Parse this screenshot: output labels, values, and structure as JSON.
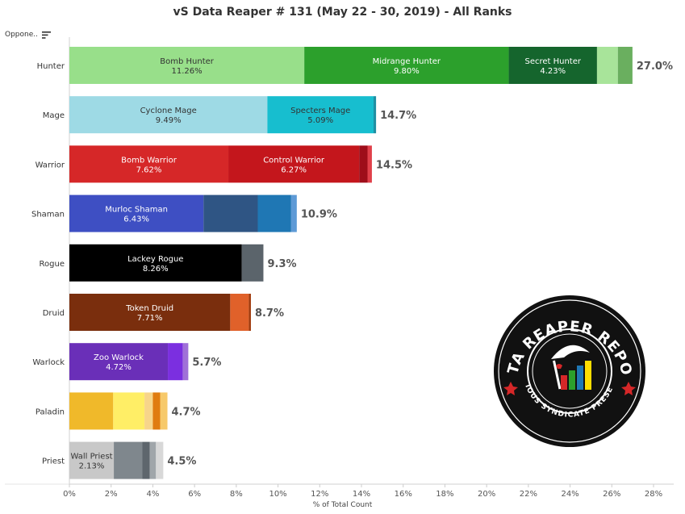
{
  "title": "vS Data Reaper # 131 (May 22 - 30, 2019) - All Ranks",
  "opponent_header": "Oppone..",
  "badge": {
    "top_text": "DATA REAPER REPORT",
    "bottom_text": "VICIOUS SYNDICATE PRESENTS"
  },
  "chart_data": {
    "type": "bar",
    "orientation": "horizontal",
    "stacked": true,
    "title": "vS Data Reaper # 131 (May 22 - 30, 2019) - All Ranks",
    "xlabel": "% of Total Count",
    "ylabel": "Oppone..",
    "xlim": [
      0,
      28
    ],
    "xticks": [
      0,
      2,
      4,
      6,
      8,
      10,
      12,
      14,
      16,
      18,
      20,
      22,
      24,
      26,
      28
    ],
    "xtick_labels": [
      "0%",
      "2%",
      "4%",
      "6%",
      "8%",
      "10%",
      "12%",
      "14%",
      "16%",
      "18%",
      "20%",
      "22%",
      "24%",
      "26%",
      "28%"
    ],
    "categories": [
      "Hunter",
      "Mage",
      "Warrior",
      "Shaman",
      "Rogue",
      "Druid",
      "Warlock",
      "Paladin",
      "Priest"
    ],
    "totals": [
      "27.0%",
      "14.7%",
      "14.5%",
      "10.9%",
      "9.3%",
      "8.7%",
      "5.7%",
      "4.7%",
      "4.5%"
    ],
    "rows": [
      {
        "class": "Hunter",
        "segments": [
          {
            "name": "Bomb Hunter",
            "value": 11.26,
            "label": "11.26%",
            "color": "#98df8a",
            "text_color": "#333333"
          },
          {
            "name": "Midrange Hunter",
            "value": 9.8,
            "label": "9.80%",
            "color": "#2ca02c",
            "text_color": "#ffffff"
          },
          {
            "name": "Secret Hunter",
            "value": 4.23,
            "label": "4.23%",
            "color": "#15652d",
            "text_color": "#ffffff"
          },
          {
            "name": "",
            "value": 1.0,
            "label": "",
            "color": "#a8e49a",
            "text_color": "#333333"
          },
          {
            "name": "",
            "value": 0.7,
            "label": "",
            "color": "#6aaf5f",
            "text_color": "#333333"
          }
        ]
      },
      {
        "class": "Mage",
        "segments": [
          {
            "name": "Cyclone Mage",
            "value": 9.49,
            "label": "9.49%",
            "color": "#9edae5",
            "text_color": "#333333"
          },
          {
            "name": "Specters Mage",
            "value": 5.09,
            "label": "5.09%",
            "color": "#17becf",
            "text_color": "#333333"
          },
          {
            "name": "",
            "value": 0.12,
            "label": "",
            "color": "#1f8fa3",
            "text_color": "#333333"
          }
        ]
      },
      {
        "class": "Warrior",
        "segments": [
          {
            "name": "Bomb Warrior",
            "value": 7.62,
            "label": "7.62%",
            "color": "#d62728",
            "text_color": "#ffffff"
          },
          {
            "name": "Control Warrior",
            "value": 6.27,
            "label": "6.27%",
            "color": "#c4161c",
            "text_color": "#ffffff"
          },
          {
            "name": "",
            "value": 0.4,
            "label": "",
            "color": "#9e0e1a",
            "text_color": "#ffffff"
          },
          {
            "name": "",
            "value": 0.21,
            "label": "",
            "color": "#e0404a",
            "text_color": "#ffffff"
          }
        ]
      },
      {
        "class": "Shaman",
        "segments": [
          {
            "name": "Murloc Shaman",
            "value": 6.43,
            "label": "6.43%",
            "color": "#3e4fc3",
            "text_color": "#ffffff"
          },
          {
            "name": "",
            "value": 2.6,
            "label": "",
            "color": "#2f5584",
            "text_color": "#ffffff"
          },
          {
            "name": "",
            "value": 1.6,
            "label": "",
            "color": "#1f77b4",
            "text_color": "#ffffff"
          },
          {
            "name": "",
            "value": 0.27,
            "label": "",
            "color": "#5e9ad6",
            "text_color": "#ffffff"
          }
        ]
      },
      {
        "class": "Rogue",
        "segments": [
          {
            "name": "Lackey Rogue",
            "value": 8.26,
            "label": "8.26%",
            "color": "#000000",
            "text_color": "#ffffff"
          },
          {
            "name": "",
            "value": 1.04,
            "label": "",
            "color": "#5b646b",
            "text_color": "#ffffff"
          }
        ]
      },
      {
        "class": "Druid",
        "segments": [
          {
            "name": "Token Druid",
            "value": 7.71,
            "label": "7.71%",
            "color": "#7a2e0d",
            "text_color": "#ffffff"
          },
          {
            "name": "",
            "value": 0.89,
            "label": "",
            "color": "#e0612a",
            "text_color": "#ffffff"
          },
          {
            "name": "",
            "value": 0.1,
            "label": "",
            "color": "#a03a0c",
            "text_color": "#ffffff"
          }
        ]
      },
      {
        "class": "Warlock",
        "segments": [
          {
            "name": "Zoo Warlock",
            "value": 4.72,
            "label": "4.72%",
            "color": "#6a2fb8",
            "text_color": "#ffffff"
          },
          {
            "name": "",
            "value": 0.72,
            "label": "",
            "color": "#7b2fe0",
            "text_color": "#ffffff"
          },
          {
            "name": "",
            "value": 0.26,
            "label": "",
            "color": "#a070d8",
            "text_color": "#ffffff"
          }
        ]
      },
      {
        "class": "Paladin",
        "segments": [
          {
            "name": "",
            "value": 2.1,
            "label": "",
            "color": "#f0b92a",
            "text_color": "#333333"
          },
          {
            "name": "",
            "value": 1.5,
            "label": "",
            "color": "#ffee66",
            "text_color": "#333333"
          },
          {
            "name": "",
            "value": 0.4,
            "label": "",
            "color": "#f7d58a",
            "text_color": "#333333"
          },
          {
            "name": "",
            "value": 0.35,
            "label": "",
            "color": "#e07c10",
            "text_color": "#333333"
          },
          {
            "name": "",
            "value": 0.35,
            "label": "",
            "color": "#f7c96a",
            "text_color": "#333333"
          }
        ]
      },
      {
        "class": "Priest",
        "segments": [
          {
            "name": "Wall Priest",
            "value": 2.13,
            "label": "2.13%",
            "color": "#c8c8c8",
            "text_color": "#333333"
          },
          {
            "name": "",
            "value": 1.37,
            "label": "",
            "color": "#7f878d",
            "text_color": "#333333"
          },
          {
            "name": "",
            "value": 0.35,
            "label": "",
            "color": "#5e666d",
            "text_color": "#333333"
          },
          {
            "name": "",
            "value": 0.3,
            "label": "",
            "color": "#a0a6aa",
            "text_color": "#333333"
          },
          {
            "name": "",
            "value": 0.35,
            "label": "",
            "color": "#d8d8d8",
            "text_color": "#333333"
          }
        ]
      }
    ],
    "grid": false,
    "legend": "none"
  }
}
